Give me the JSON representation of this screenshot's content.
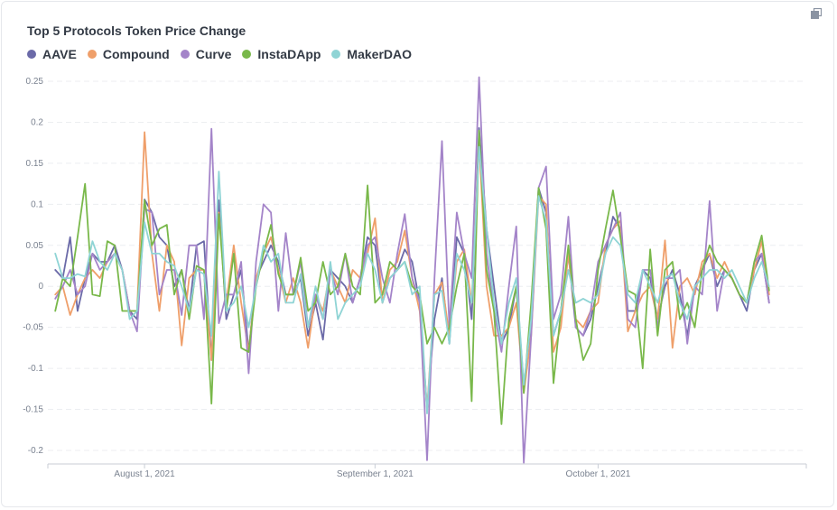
{
  "chart_data": {
    "type": "line",
    "title": "Top 5 Protocols Token Price Change",
    "xlabel": "",
    "ylabel": "",
    "ylim": [
      -0.2,
      0.25
    ],
    "yticks": [
      -0.2,
      -0.15,
      -0.1,
      -0.05,
      0,
      0.05,
      0.1,
      0.15,
      0.2,
      0.25
    ],
    "ytick_labels": [
      "-0.2",
      "-0.15",
      "-0.1",
      "-0.05",
      "0",
      "0.05",
      "0.1",
      "0.15",
      "0.2",
      "0.25"
    ],
    "xlim": [
      "2021-07-19",
      "2021-10-29"
    ],
    "xticks": [
      {
        "date": "2021-08-01",
        "label": "August 1, 2021"
      },
      {
        "date": "2021-09-01",
        "label": "September 1, 2021"
      },
      {
        "date": "2021-10-01",
        "label": "October 1, 2021"
      }
    ],
    "x_start": "2021-07-20",
    "grid": "horizontal dashed",
    "legend_position": "top-left",
    "series": [
      {
        "name": "AAVE",
        "color": "#6b6aa8",
        "values": [
          0.02,
          0.01,
          0.06,
          -0.03,
          0.01,
          0.04,
          0.03,
          0.03,
          0.05,
          0.02,
          -0.03,
          -0.04,
          0.106,
          0.09,
          0.06,
          0.05,
          0.0,
          0.02,
          -0.03,
          0.05,
          0.055,
          -0.09,
          0.105,
          -0.04,
          -0.01,
          0.02,
          -0.08,
          0.01,
          0.03,
          0.05,
          0.03,
          -0.01,
          -0.01,
          0.01,
          -0.06,
          -0.02,
          -0.065,
          0.02,
          0.01,
          0.0,
          -0.02,
          0.01,
          0.06,
          0.05,
          -0.02,
          0.01,
          0.02,
          0.045,
          0.03,
          -0.02,
          -0.15,
          -0.04,
          0.01,
          -0.07,
          0.06,
          0.04,
          -0.04,
          0.193,
          0.07,
          0.0,
          -0.07,
          -0.05,
          0.0,
          -0.12,
          -0.05,
          0.12,
          0.09,
          -0.06,
          -0.03,
          0.04,
          -0.05,
          -0.06,
          -0.04,
          0.0,
          0.04,
          0.085,
          0.07,
          -0.03,
          -0.03,
          0.02,
          0.01,
          -0.04,
          0.0,
          0.02,
          -0.01,
          -0.06,
          0.0,
          0.02,
          0.04,
          0.0,
          0.02,
          0.01,
          -0.01,
          -0.03,
          0.02,
          0.04,
          -0.02
        ]
      },
      {
        "name": "Compound",
        "color": "#ef9f6a",
        "values": [
          -0.01,
          0.0,
          -0.035,
          -0.01,
          0.01,
          0.02,
          0.01,
          0.03,
          0.04,
          0.02,
          -0.03,
          -0.03,
          0.188,
          0.04,
          -0.03,
          0.05,
          0.03,
          -0.072,
          0.01,
          0.02,
          0.02,
          -0.09,
          0.09,
          -0.02,
          0.05,
          -0.02,
          -0.08,
          0.01,
          0.04,
          0.06,
          0.02,
          -0.02,
          0.01,
          -0.02,
          -0.075,
          -0.01,
          -0.03,
          0.02,
          0.0,
          -0.02,
          0.02,
          0.01,
          0.04,
          0.083,
          -0.02,
          0.02,
          0.03,
          0.068,
          0.01,
          -0.03,
          -0.15,
          -0.01,
          0.005,
          -0.06,
          0.03,
          0.045,
          -0.02,
          0.175,
          0.0,
          -0.06,
          -0.06,
          -0.05,
          -0.02,
          -0.13,
          -0.06,
          0.11,
          0.1,
          -0.08,
          -0.05,
          0.04,
          -0.04,
          -0.05,
          -0.03,
          -0.02,
          0.05,
          0.07,
          0.08,
          -0.055,
          -0.03,
          -0.01,
          0.0,
          -0.04,
          0.056,
          -0.075,
          0.0,
          0.01,
          -0.01,
          0.03,
          0.04,
          0.01,
          0.03,
          0.01,
          -0.01,
          -0.02,
          0.02,
          0.055,
          -0.01
        ]
      },
      {
        "name": "Curve",
        "color": "#a484c9",
        "values": [
          -0.015,
          0.0,
          0.02,
          -0.01,
          0.0,
          0.04,
          0.02,
          0.03,
          0.04,
          0.02,
          -0.03,
          -0.055,
          0.095,
          0.09,
          -0.01,
          0.02,
          0.02,
          -0.035,
          0.05,
          0.05,
          -0.04,
          0.192,
          -0.045,
          -0.01,
          -0.01,
          0.03,
          -0.106,
          0.03,
          0.1,
          0.09,
          -0.03,
          0.065,
          -0.01,
          0.03,
          -0.05,
          -0.01,
          -0.04,
          0.02,
          -0.01,
          0.04,
          -0.02,
          0.01,
          0.05,
          0.06,
          0.01,
          -0.02,
          0.04,
          0.088,
          0.01,
          -0.02,
          -0.212,
          0.01,
          0.177,
          -0.05,
          0.09,
          0.04,
          0.01,
          0.255,
          0.04,
          -0.03,
          -0.08,
          0.0,
          0.073,
          -0.215,
          -0.06,
          0.12,
          0.146,
          -0.04,
          -0.01,
          0.085,
          -0.05,
          -0.06,
          -0.03,
          0.03,
          0.05,
          0.07,
          0.09,
          -0.04,
          -0.05,
          0.02,
          0.02,
          -0.05,
          0.01,
          0.01,
          0.02,
          -0.07,
          0.0,
          -0.01,
          0.104,
          -0.03,
          0.02,
          0.01,
          -0.01,
          -0.02,
          0.03,
          0.04,
          -0.02
        ]
      },
      {
        "name": "InstaDApp",
        "color": "#79b84a",
        "values": [
          -0.03,
          0.01,
          0.0,
          0.06,
          0.125,
          -0.01,
          -0.012,
          0.055,
          0.05,
          -0.03,
          -0.03,
          -0.03,
          0.105,
          0.05,
          0.07,
          0.075,
          -0.01,
          0.02,
          -0.04,
          0.025,
          0.02,
          -0.143,
          0.088,
          -0.03,
          0.04,
          -0.075,
          -0.08,
          0.0,
          0.04,
          0.075,
          0.015,
          -0.01,
          -0.01,
          0.035,
          -0.03,
          -0.02,
          0.03,
          -0.01,
          0.0,
          0.04,
          0.0,
          -0.01,
          0.123,
          -0.02,
          -0.01,
          0.03,
          0.02,
          0.03,
          0.0,
          -0.01,
          -0.07,
          -0.05,
          -0.07,
          -0.05,
          0.0,
          0.04,
          -0.14,
          0.19,
          0.02,
          -0.03,
          -0.168,
          -0.04,
          0.0,
          -0.13,
          -0.02,
          0.12,
          0.07,
          -0.118,
          -0.03,
          0.05,
          -0.04,
          -0.09,
          -0.07,
          0.02,
          0.07,
          0.117,
          0.06,
          -0.005,
          -0.01,
          -0.1,
          0.045,
          -0.06,
          0.02,
          0.03,
          -0.04,
          -0.02,
          -0.05,
          0.02,
          0.05,
          0.03,
          0.02,
          0.01,
          -0.01,
          -0.02,
          0.03,
          0.062,
          -0.005
        ]
      },
      {
        "name": "MakerDAO",
        "color": "#8fd4d5",
        "values": [
          0.04,
          0.01,
          0.01,
          0.015,
          0.012,
          0.055,
          0.03,
          0.02,
          0.04,
          0.02,
          -0.04,
          -0.03,
          0.078,
          0.04,
          0.04,
          0.03,
          0.025,
          0.0,
          -0.03,
          0.02,
          0.015,
          -0.06,
          0.14,
          -0.03,
          -0.02,
          0.0,
          -0.05,
          0.0,
          0.05,
          0.03,
          0.04,
          -0.02,
          -0.02,
          0.015,
          -0.05,
          0.0,
          -0.04,
          0.03,
          -0.04,
          -0.02,
          -0.01,
          0.0,
          0.04,
          0.02,
          -0.02,
          0.01,
          0.02,
          0.03,
          -0.01,
          0.0,
          -0.155,
          -0.01,
          -0.005,
          -0.07,
          0.04,
          0.02,
          -0.02,
          0.17,
          0.07,
          -0.02,
          -0.07,
          -0.02,
          0.01,
          -0.12,
          -0.04,
          0.11,
          0.08,
          -0.06,
          -0.03,
          0.02,
          -0.02,
          -0.015,
          -0.02,
          -0.01,
          0.04,
          0.06,
          0.05,
          -0.01,
          -0.02,
          0.02,
          0.0,
          -0.02,
          0.01,
          0.015,
          -0.02,
          -0.04,
          0.0,
          0.01,
          0.02,
          0.02,
          0.01,
          0.02,
          0.0,
          -0.02,
          0.01,
          0.03,
          0.0
        ]
      }
    ]
  }
}
